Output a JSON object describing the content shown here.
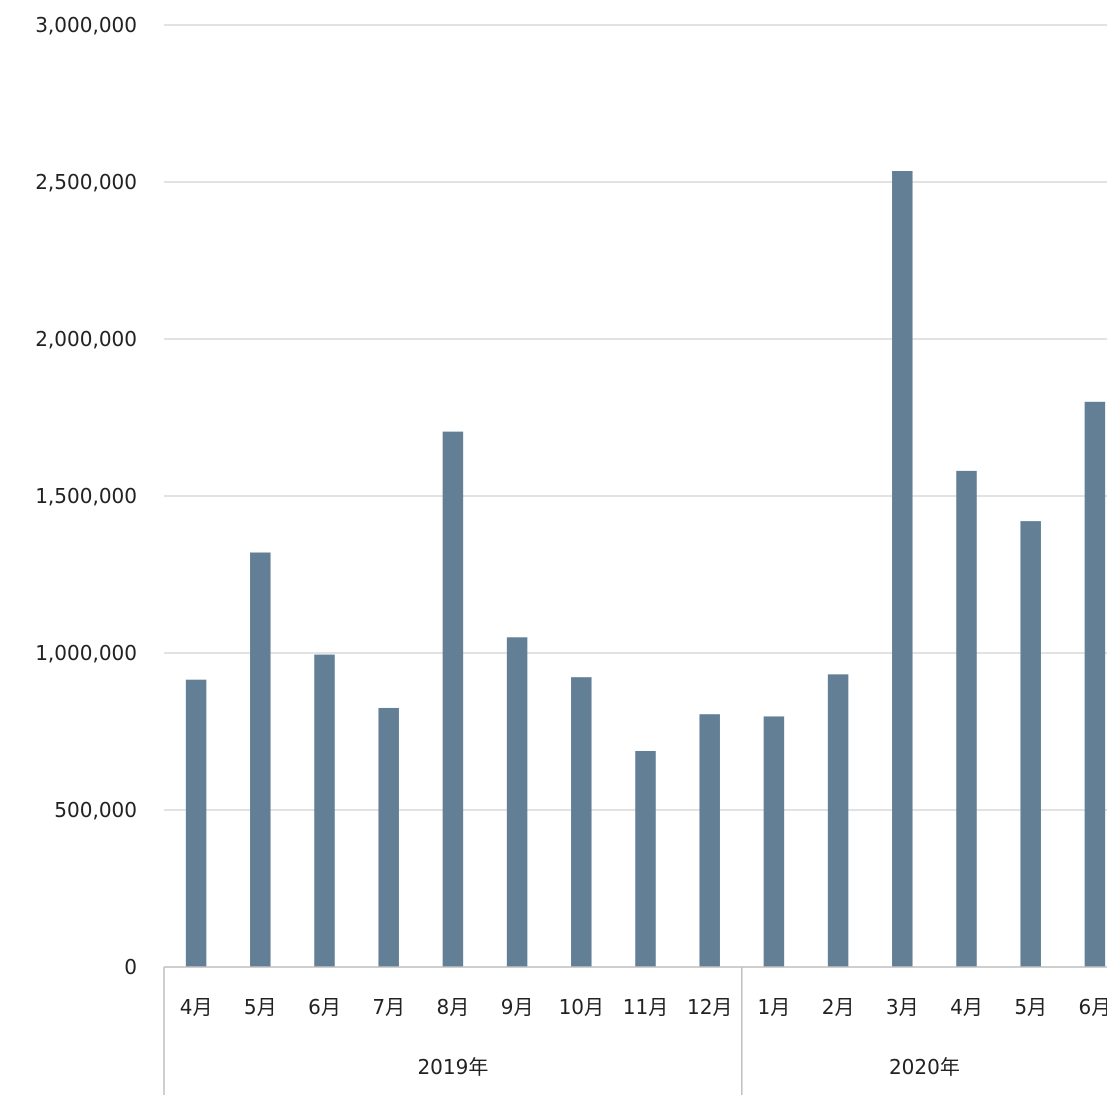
{
  "chart_data": {
    "type": "bar",
    "title": "",
    "xlabel": "",
    "ylabel": "",
    "ylim": [
      0,
      3000000
    ],
    "yticks": [
      0,
      500000,
      1000000,
      1500000,
      2000000,
      2500000,
      3000000
    ],
    "ytick_labels": [
      "0",
      "500,000",
      "1,000,000",
      "1,500,000",
      "2,000,000",
      "2,500,000",
      "3,000,000"
    ],
    "grid": true,
    "legend": "none",
    "bar_color": "#627f95",
    "categories": [
      "4月",
      "5月",
      "6月",
      "7月",
      "8月",
      "9月",
      "10月",
      "11月",
      "12月",
      "1月",
      "2月",
      "3月",
      "4月",
      "5月",
      "6月"
    ],
    "groups": [
      {
        "label": "2019年",
        "count": 9
      },
      {
        "label": "2020年",
        "count": 6
      }
    ],
    "values": [
      915000,
      1320000,
      995000,
      825000,
      1705000,
      1050000,
      923000,
      688000,
      805000,
      798000,
      932000,
      2535000,
      1580000,
      1420000,
      1800000
    ]
  }
}
